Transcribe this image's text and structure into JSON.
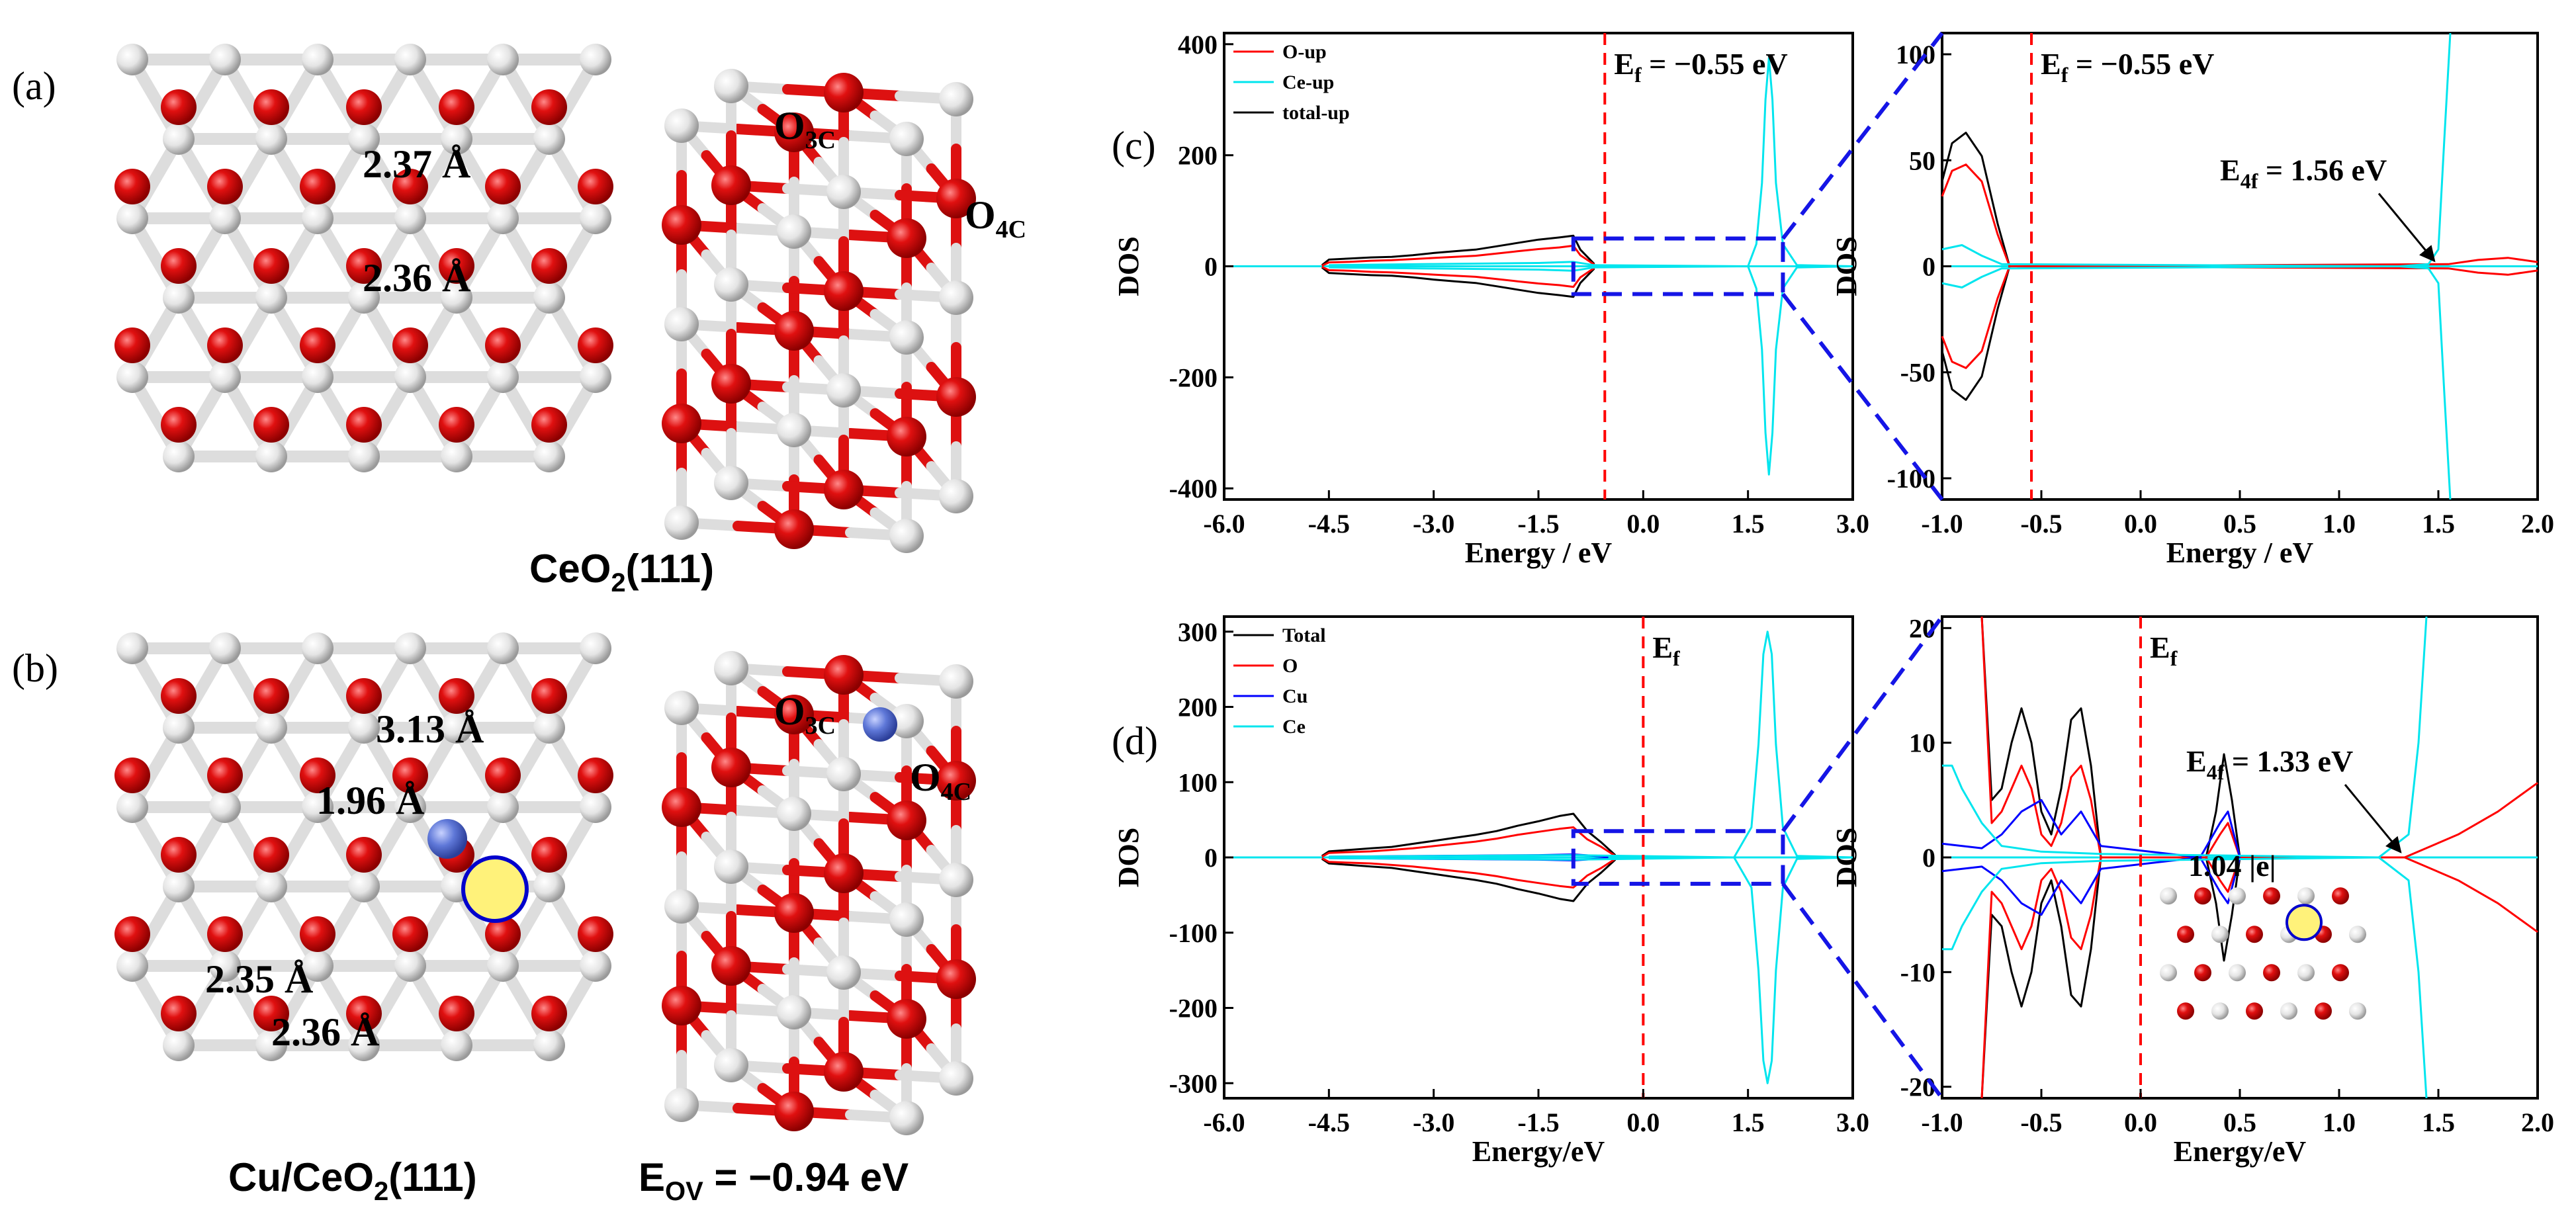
{
  "panels": {
    "a": {
      "label": "(a)",
      "caption_main": "CeO",
      "caption_sub": "2",
      "caption_tail": "(111)",
      "distances": [
        "2.37 Å",
        "2.36 Å"
      ],
      "site_labels": [
        {
          "main": "O",
          "sub": "3C"
        },
        {
          "main": "O",
          "sub": "4C"
        }
      ]
    },
    "b": {
      "label": "(b)",
      "caption_main": "Cu/CeO",
      "caption_sub": "2",
      "caption_tail": "(111)",
      "eov_main": "E",
      "eov_sub": "OV",
      "eov_value": " = −0.94 eV",
      "distances": [
        "3.13 Å",
        "1.96 Å",
        "2.35 Å",
        "2.36 Å"
      ],
      "site_labels": [
        {
          "main": "O",
          "sub": "3C"
        },
        {
          "main": "O",
          "sub": "4C"
        }
      ]
    },
    "c_label": "(c)",
    "d_label": "(d)"
  },
  "chart_data": [
    {
      "id": "c-left",
      "type": "line",
      "xlabel": "Energy / eV",
      "ylabel": "DOS",
      "xlim": [
        -6.0,
        3.0
      ],
      "ylim": [
        -420,
        420
      ],
      "xticks": [
        "-6.0",
        "-4.5",
        "-3.0",
        "-1.5",
        "0.0",
        "1.5",
        "3.0"
      ],
      "yticks": [
        "-400",
        "-200",
        "0",
        "200",
        "400"
      ],
      "legend": [
        "O-up",
        "Ce-up",
        "total-up"
      ],
      "fermi": {
        "x": -0.55,
        "label_main": "E",
        "label_sub": "f",
        "label_tail": " = −0.55 eV"
      },
      "series": [
        {
          "name": "total-up",
          "color": "#000000",
          "x": [
            -4.6,
            -4.5,
            -4.2,
            -3.9,
            -3.6,
            -3.3,
            -3.0,
            -2.7,
            -2.4,
            -2.1,
            -1.8,
            -1.5,
            -1.2,
            -1.0,
            -0.9,
            -0.7
          ],
          "y": [
            2,
            12,
            14,
            16,
            17,
            20,
            24,
            27,
            30,
            36,
            42,
            48,
            52,
            55,
            30,
            4
          ],
          "mirror": true
        },
        {
          "name": "O-up",
          "color": "#ff0000",
          "x": [
            -4.6,
            -4.5,
            -4.2,
            -3.9,
            -3.6,
            -3.3,
            -3.0,
            -2.7,
            -2.4,
            -2.1,
            -1.8,
            -1.5,
            -1.2,
            -1.0,
            -0.9,
            -0.7
          ],
          "y": [
            1,
            7,
            8,
            10,
            11,
            13,
            15,
            17,
            19,
            23,
            27,
            31,
            34,
            37,
            20,
            3
          ],
          "mirror": true
        },
        {
          "name": "Ce-up",
          "color": "#00e5ee",
          "x": [
            -4.5,
            -3.0,
            -1.5,
            -1.0,
            -0.7,
            1.5,
            1.62,
            1.7,
            1.75,
            1.8,
            1.85,
            1.9,
            2.0,
            2.2,
            3.0
          ],
          "y": [
            2,
            4,
            6,
            8,
            2,
            0,
            40,
            150,
            300,
            375,
            300,
            150,
            40,
            2,
            0
          ],
          "mirror": true
        }
      ]
    },
    {
      "id": "c-right",
      "type": "line",
      "xlabel": "Energy / eV",
      "ylabel": "DOS",
      "xlim": [
        -1.0,
        2.0
      ],
      "ylim": [
        -110,
        110
      ],
      "xticks": [
        "-1.0",
        "-0.5",
        "0.0",
        "0.5",
        "1.0",
        "1.5",
        "2.0"
      ],
      "yticks": [
        "-100",
        "-50",
        "0",
        "50",
        "100"
      ],
      "fermi": {
        "x": -0.55,
        "label_main": "E",
        "label_sub": "f",
        "label_tail": " = −0.55 eV"
      },
      "annotation": {
        "main": "E",
        "sub": "4f",
        "tail": " = 1.56 eV",
        "x": 1.5,
        "y": 0
      },
      "series": [
        {
          "name": "total-up",
          "color": "#000000",
          "x": [
            -1.0,
            -0.95,
            -0.88,
            -0.8,
            -0.72,
            -0.66
          ],
          "y": [
            40,
            58,
            63,
            52,
            20,
            0
          ],
          "mirror": true
        },
        {
          "name": "O-up",
          "color": "#ff0000",
          "x": [
            -1.0,
            -0.95,
            -0.88,
            -0.8,
            -0.72,
            -0.66,
            1.55,
            1.7,
            1.85,
            2.0
          ],
          "y": [
            33,
            45,
            48,
            40,
            15,
            0,
            1,
            3,
            4,
            2
          ],
          "mirror": true
        },
        {
          "name": "Ce-up",
          "color": "#00e5ee",
          "x": [
            -1.0,
            -0.9,
            -0.8,
            -0.7,
            1.3,
            1.45,
            1.5,
            1.53,
            1.56
          ],
          "y": [
            8,
            10,
            5,
            1,
            0,
            1,
            8,
            60,
            110
          ],
          "mirror": true
        }
      ]
    },
    {
      "id": "d-left",
      "type": "line",
      "xlabel": "Energy/eV",
      "ylabel": "DOS",
      "xlim": [
        -6.0,
        3.0
      ],
      "ylim": [
        -320,
        320
      ],
      "xticks": [
        "-6.0",
        "-4.5",
        "-3.0",
        "-1.5",
        "0.0",
        "1.5",
        "3.0"
      ],
      "yticks": [
        "-300",
        "-200",
        "-100",
        "0",
        "100",
        "200",
        "300"
      ],
      "legend": [
        "Total",
        "O",
        "Cu",
        "Ce"
      ],
      "fermi": {
        "x": 0.0,
        "label_main": "E",
        "label_sub": "f",
        "label_tail": ""
      },
      "series": [
        {
          "name": "Total",
          "color": "#000000",
          "x": [
            -4.6,
            -4.5,
            -4.2,
            -3.9,
            -3.6,
            -3.3,
            -3.0,
            -2.7,
            -2.4,
            -2.1,
            -1.8,
            -1.5,
            -1.2,
            -1.0,
            -0.8,
            -0.6,
            -0.4
          ],
          "y": [
            2,
            8,
            10,
            12,
            14,
            18,
            22,
            26,
            30,
            35,
            42,
            48,
            55,
            58,
            35,
            20,
            3
          ],
          "mirror": true
        },
        {
          "name": "O",
          "color": "#ff0000",
          "x": [
            -4.6,
            -4.5,
            -4.2,
            -3.9,
            -3.6,
            -3.3,
            -3.0,
            -2.7,
            -2.4,
            -2.1,
            -1.8,
            -1.5,
            -1.2,
            -1.0,
            -0.8,
            -0.6,
            -0.4
          ],
          "y": [
            1,
            6,
            7,
            8,
            10,
            12,
            15,
            18,
            21,
            25,
            30,
            34,
            38,
            40,
            24,
            14,
            2
          ],
          "mirror": true
        },
        {
          "name": "Cu",
          "color": "#0000ff",
          "x": [
            -4.5,
            -3.0,
            -1.5,
            -1.0,
            -0.5
          ],
          "y": [
            1,
            2,
            3,
            4,
            1
          ],
          "mirror": true
        },
        {
          "name": "Ce",
          "color": "#00e5ee",
          "x": [
            -4.5,
            -1.0,
            1.3,
            1.55,
            1.65,
            1.72,
            1.78,
            1.84,
            1.9,
            2.0,
            2.2,
            3.0
          ],
          "y": [
            1,
            3,
            0,
            40,
            150,
            270,
            300,
            270,
            150,
            40,
            2,
            0
          ],
          "mirror": true
        }
      ]
    },
    {
      "id": "d-right",
      "type": "line",
      "xlabel": "Energy/eV",
      "ylabel": "DOS",
      "xlim": [
        -1.0,
        2.0
      ],
      "ylim": [
        -21,
        21
      ],
      "xticks": [
        "-1.0",
        "-0.5",
        "0.0",
        "0.5",
        "1.0",
        "1.5",
        "2.0"
      ],
      "yticks": [
        "-20",
        "-10",
        "0",
        "10",
        "20"
      ],
      "fermi": {
        "x": 0.0,
        "label_main": "E",
        "label_sub": "f",
        "label_tail": ""
      },
      "annotation": {
        "main": "E",
        "sub": "4f",
        "tail": " = 1.33 eV",
        "x": 1.33,
        "y": 0
      },
      "inset_label": "1.04 |e|",
      "series": [
        {
          "name": "Total",
          "color": "#000000",
          "x": [
            -0.8,
            -0.75,
            -0.7,
            -0.65,
            -0.6,
            -0.55,
            -0.5,
            -0.45,
            -0.4,
            -0.35,
            -0.3,
            -0.25,
            -0.2,
            0.33,
            0.38,
            0.42,
            0.46,
            0.5
          ],
          "y": [
            21,
            5,
            6,
            10,
            13,
            10,
            4,
            2,
            6,
            12,
            13,
            8,
            0,
            0,
            4,
            9,
            5,
            0
          ],
          "mirror": true
        },
        {
          "name": "O",
          "color": "#ff0000",
          "x": [
            -0.8,
            -0.75,
            -0.7,
            -0.65,
            -0.6,
            -0.55,
            -0.5,
            -0.45,
            -0.4,
            -0.35,
            -0.3,
            -0.25,
            -0.2,
            0.33,
            0.4,
            0.44,
            0.5,
            1.33,
            1.6,
            1.8,
            2.0
          ],
          "y": [
            21,
            3,
            4,
            6,
            8,
            6,
            2,
            1,
            3,
            7,
            8,
            5,
            0,
            0,
            2,
            3,
            0,
            0,
            2,
            4,
            6.5
          ],
          "mirror": true
        },
        {
          "name": "Cu",
          "color": "#0000ff",
          "x": [
            -1.0,
            -0.8,
            -0.7,
            -0.6,
            -0.5,
            -0.4,
            -0.3,
            -0.2,
            0.3,
            0.4,
            0.44,
            0.5
          ],
          "y": [
            1.2,
            0.8,
            2,
            4,
            5,
            2,
            4,
            1,
            0,
            3,
            4,
            0
          ],
          "mirror": true
        },
        {
          "name": "Ce",
          "color": "#00e5ee",
          "x": [
            -1.0,
            -0.95,
            -0.9,
            -0.8,
            -0.7,
            -0.5,
            -0.2,
            1.2,
            1.35,
            1.4,
            1.44
          ],
          "y": [
            8,
            8,
            6,
            3,
            1,
            0.5,
            0.3,
            0,
            2,
            10,
            21
          ],
          "mirror": true
        }
      ]
    }
  ]
}
